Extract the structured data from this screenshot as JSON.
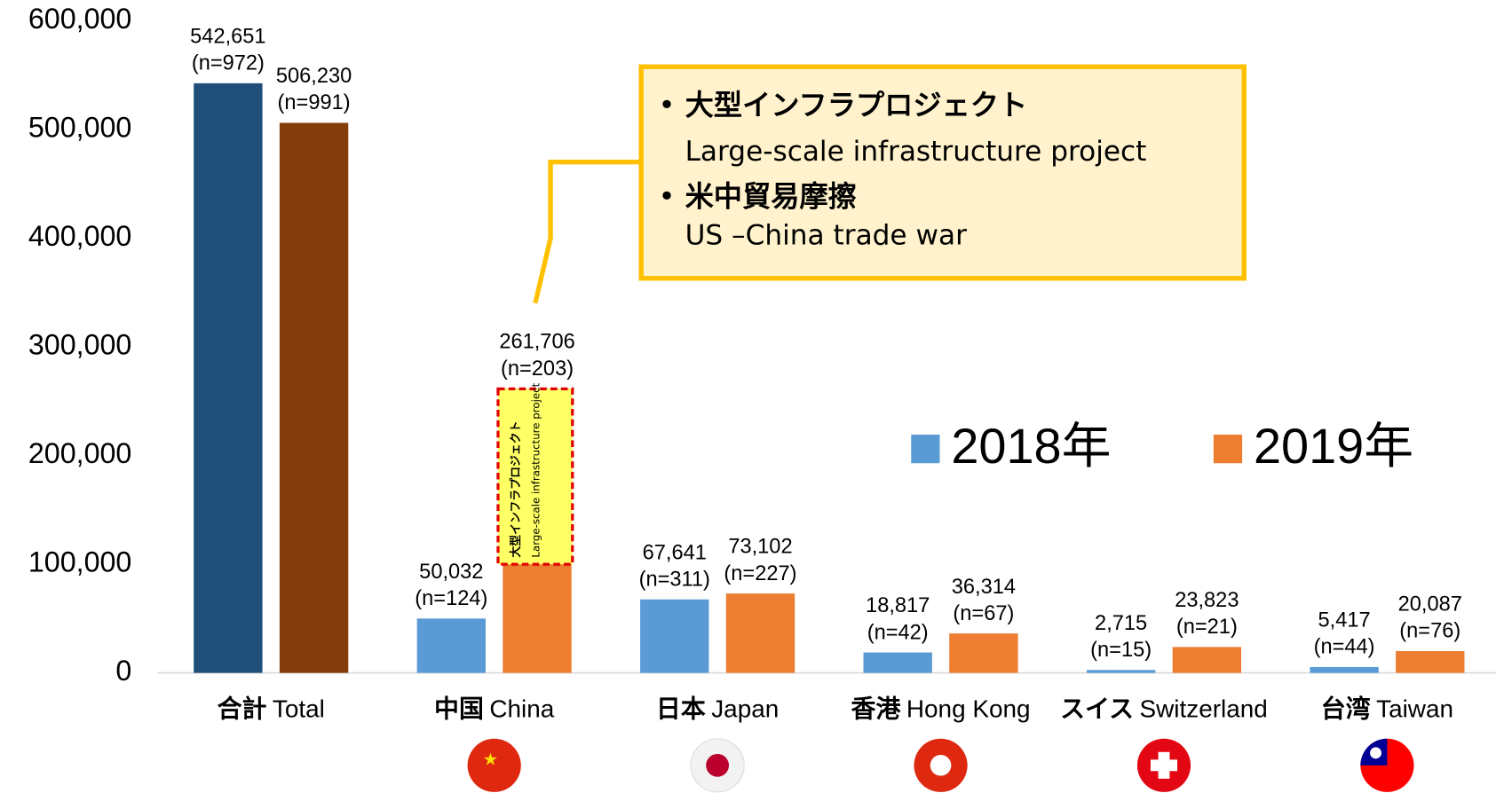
{
  "chart_data": {
    "type": "bar",
    "categories": [
      {
        "jp": "合計",
        "en": "Total"
      },
      {
        "jp": "中国",
        "en": "China"
      },
      {
        "jp": "日本",
        "en": "Japan"
      },
      {
        "jp": "香港",
        "en": "Hong Kong"
      },
      {
        "jp": "スイス",
        "en": "Switzerland"
      },
      {
        "jp": "台湾",
        "en": "Taiwan"
      }
    ],
    "series": [
      {
        "name": "2018年",
        "color": "#5b9bd5",
        "colors": [
          "#1f4e79",
          "#5b9bd5",
          "#5b9bd5",
          "#5b9bd5",
          "#5b9bd5",
          "#5b9bd5"
        ],
        "values": [
          542651,
          50032,
          67641,
          18817,
          2715,
          5417
        ],
        "value_labels": [
          "542,651",
          "50,032",
          "67,641",
          "18,817",
          "2,715",
          "5,417"
        ],
        "n_labels": [
          "(n=972)",
          "(n=124)",
          "(n=311)",
          "(n=42)",
          "(n=15)",
          "(n=44)"
        ]
      },
      {
        "name": "2019年",
        "color": "#ed7d31",
        "colors": [
          "#843c0c",
          "#ed7d31",
          "#ed7d31",
          "#ed7d31",
          "#ed7d31",
          "#ed7d31"
        ],
        "values": [
          506230,
          261706,
          73102,
          36314,
          23823,
          20087
        ],
        "value_labels": [
          "506,230",
          "261,706",
          "73,102",
          "36,314",
          "23,823",
          "20,087"
        ],
        "n_labels": [
          "(n=991)",
          "(n=203)",
          "(n=227)",
          "(n=67)",
          "(n=21)",
          "(n=76)"
        ]
      }
    ],
    "ylim": [
      0,
      600000
    ],
    "yticks": [
      0,
      {
        "value": 100000,
        "label": "100,000"
      },
      {
        "value": 200000,
        "label": "200,000"
      },
      {
        "value": 300000,
        "label": "300,000"
      },
      {
        "value": 400000,
        "label": "400,000"
      },
      {
        "value": 500000,
        "label": "500,000"
      },
      {
        "value": 600000,
        "label": "600,000"
      }
    ],
    "grid": false,
    "legend": "right",
    "annotation": {
      "items": [
        {
          "jp": "大型インフラプロジェクト",
          "en": "Large-scale infrastructure project"
        },
        {
          "jp": "米中貿易摩擦",
          "en": "US –China trade war"
        }
      ]
    },
    "bar_annotation": {
      "jp": "大型インフラプロジェクト",
      "en": "Large-scale infrastructure project"
    }
  }
}
